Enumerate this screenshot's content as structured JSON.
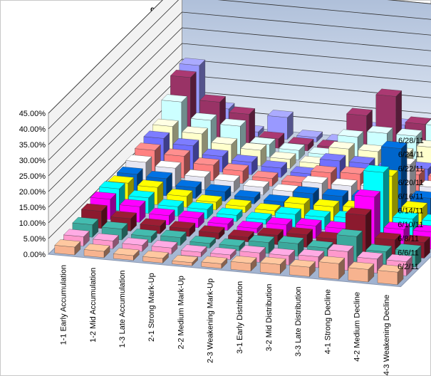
{
  "chart_data": {
    "type": "bar",
    "subtype": "3d-column",
    "title": "% of Stocks in Daily Stages",
    "xlabel": "",
    "ylabel": "",
    "ylim": [
      0,
      45
    ],
    "yticks": [
      "0.00%",
      "5.00%",
      "10.00%",
      "15.00%",
      "20.00%",
      "25.00%",
      "30.00%",
      "35.00%",
      "40.00%",
      "45.00%"
    ],
    "categories": [
      "1-1 Early Accumulation",
      "1-2 Mid Accumulation",
      "1-3 Late Accumulation",
      "2-1 Strong Mark-Up",
      "2-2 Medium Mark-Up",
      "2-3 Weakening Mark-Up",
      "3-1 Early Distribution",
      "3-2 Mid Distribution",
      "3-3 Late Distribution",
      "4-1 Strong Decline",
      "4-2 Medium Decline",
      "4-3 Weakening Decline"
    ],
    "series": [
      {
        "name": "6/2/11",
        "color": "#f7b38f",
        "values": [
          2.5,
          2.0,
          1.5,
          1.5,
          1.0,
          1.5,
          2.5,
          3.0,
          3.0,
          5.0,
          4.0,
          4.0
        ]
      },
      {
        "name": "6/6/11",
        "color": "#ff99cc",
        "values": [
          3.0,
          2.5,
          2.0,
          2.0,
          1.5,
          1.5,
          3.0,
          3.0,
          3.5,
          6.0,
          4.5,
          4.5
        ]
      },
      {
        "name": "6/8/11",
        "color": "#3ca89c",
        "values": [
          4.0,
          3.5,
          2.0,
          2.5,
          1.5,
          1.5,
          3.5,
          4.0,
          3.5,
          8.0,
          4.0,
          5.0
        ]
      },
      {
        "name": "6/10/11",
        "color": "#8b1a2e",
        "values": [
          5.5,
          4.0,
          2.5,
          2.5,
          2.0,
          1.5,
          3.0,
          4.0,
          3.5,
          12.0,
          5.0,
          5.0
        ]
      },
      {
        "name": "6/14/11",
        "color": "#ff00ff",
        "values": [
          6.5,
          5.0,
          3.0,
          3.0,
          2.0,
          1.5,
          3.5,
          4.0,
          4.0,
          15.0,
          5.5,
          5.5
        ]
      },
      {
        "name": "6/16/11",
        "color": "#00ffff",
        "values": [
          7.0,
          5.0,
          3.0,
          3.0,
          2.0,
          1.5,
          4.0,
          4.0,
          4.5,
          20.0,
          6.0,
          6.0
        ]
      },
      {
        "name": "6/20/11",
        "color": "#ffff00",
        "values": [
          6.0,
          5.5,
          3.5,
          2.5,
          2.0,
          1.5,
          4.5,
          4.5,
          5.0,
          16.0,
          6.5,
          6.0
        ]
      },
      {
        "name": "6/22/11",
        "color": "#0066cc",
        "values": [
          6.0,
          5.5,
          3.5,
          3.0,
          2.0,
          1.5,
          5.0,
          5.0,
          5.5,
          22.0,
          7.0,
          6.5
        ]
      },
      {
        "name": "6/24/11",
        "color": "#e6e6f2",
        "values": [
          7.0,
          6.0,
          4.0,
          3.5,
          2.5,
          2.0,
          5.5,
          5.5,
          6.0,
          14.0,
          7.5,
          7.0
        ]
      },
      {
        "name": "6/28/11",
        "color": "#ff8080",
        "values": [
          8.0,
          7.0,
          5.0,
          4.0,
          2.5,
          2.0,
          6.0,
          6.5,
          6.5,
          8.0,
          8.0,
          7.5
        ]
      },
      {
        "name": "",
        "color": "#7070ff",
        "values": [
          9.0,
          7.5,
          5.0,
          4.0,
          3.0,
          2.0,
          7.0,
          7.0,
          7.0,
          7.0,
          8.5,
          8.0
        ]
      },
      {
        "name": "",
        "color": "#ffffcc",
        "values": [
          10.0,
          8.5,
          6.0,
          5.0,
          3.0,
          2.5,
          8.0,
          8.0,
          8.0,
          11.0,
          9.5,
          9.0
        ]
      },
      {
        "name": "",
        "color": "#ccffff",
        "values": [
          15.0,
          10.0,
          9.0,
          4.0,
          3.0,
          2.5,
          9.0,
          11.0,
          11.0,
          15.0,
          10.5,
          9.5
        ]
      },
      {
        "name": "",
        "color": "#993366",
        "values": [
          20.0,
          13.0,
          10.0,
          3.0,
          2.0,
          2.0,
          13.0,
          20.0,
          12.0,
          25.0,
          12.0,
          13.0
        ]
      },
      {
        "name": "",
        "color": "#9999ff",
        "values": [
          21.0,
          8.0,
          1.5,
          7.0,
          1.5,
          1.0,
          6.0,
          8.0,
          6.0,
          16.0,
          12.0,
          14.0
        ]
      }
    ],
    "depth_tick_labels": [
      "6/2/11",
      "6/6/11",
      "6/8/11",
      "6/10/11",
      "6/14/11",
      "6/16/11",
      "6/20/11",
      "6/22/11",
      "6/24/11",
      "6/28/11"
    ],
    "grid": true,
    "legend": "none"
  }
}
